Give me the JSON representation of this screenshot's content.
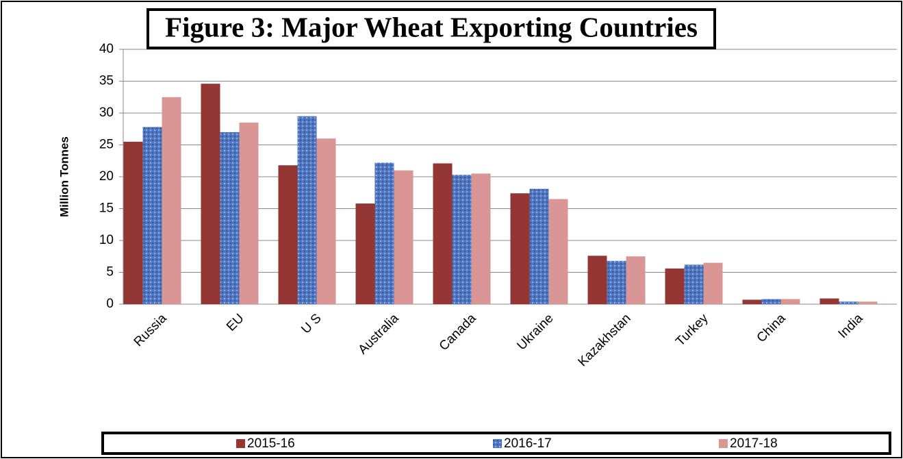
{
  "chart_data": {
    "type": "bar",
    "title": "Figure 3: Major Wheat Exporting Countries",
    "y_label": "Million Tonnes",
    "categories": [
      "Russia",
      "EU",
      "U S",
      "Australia",
      "Canada",
      "Ukraine",
      "Kazakhstan",
      "Turkey",
      "China",
      "India"
    ],
    "series": [
      {
        "name": "2015-16",
        "color": "#943634",
        "values": [
          25.5,
          34.6,
          21.8,
          15.8,
          22.1,
          17.4,
          7.6,
          5.6,
          0.7,
          0.9
        ]
      },
      {
        "name": "2016-17",
        "color": "#4f76c0",
        "values": [
          27.8,
          27.0,
          29.5,
          22.2,
          20.3,
          18.1,
          6.8,
          6.2,
          0.8,
          0.4
        ]
      },
      {
        "name": "2017-18",
        "color": "#d99694",
        "values": [
          32.5,
          28.5,
          26.0,
          21.0,
          20.5,
          16.5,
          7.5,
          6.5,
          0.8,
          0.4
        ]
      }
    ],
    "ylim": [
      0,
      40
    ],
    "yticks": [
      0,
      5,
      10,
      15,
      20,
      25,
      30,
      35,
      40
    ],
    "grid": true,
    "legend": "bottom"
  }
}
